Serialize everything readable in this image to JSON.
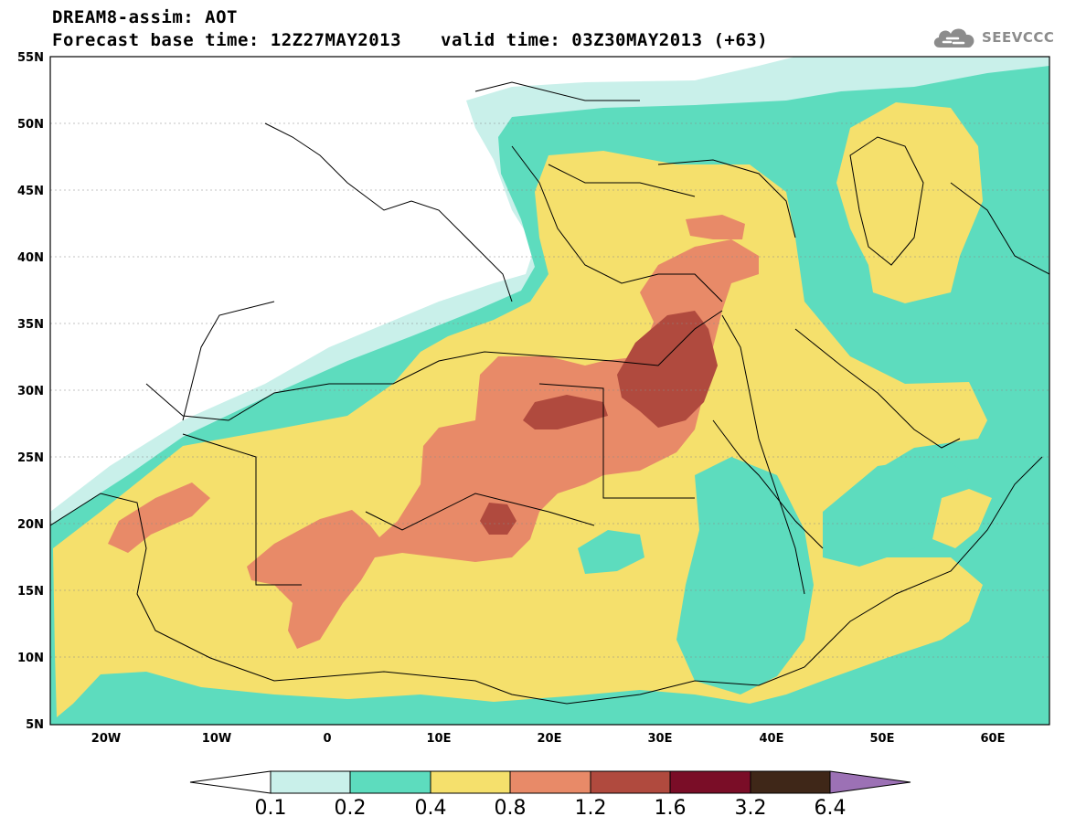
{
  "header": {
    "title": "DREAM8-assim: AOT",
    "forecast_base": "Forecast base time: 12Z27MAY2013",
    "valid_time": "valid time: 03Z30MAY2013 (+63)"
  },
  "logo": {
    "text": "SEEVCCC",
    "icon": "cloud-icon"
  },
  "map": {
    "lat_labels": [
      "55N",
      "50N",
      "45N",
      "40N",
      "35N",
      "30N",
      "25N",
      "20N",
      "15N",
      "10N",
      "5N"
    ],
    "lon_labels": [
      "20W",
      "10W",
      "0",
      "10E",
      "20E",
      "30E",
      "40E",
      "50E",
      "60E"
    ]
  },
  "colorbar": {
    "labels": [
      "0.1",
      "0.2",
      "0.4",
      "0.8",
      "1.2",
      "1.6",
      "3.2",
      "6.4"
    ],
    "colors": [
      "#c9f0ea",
      "#5ddcbe",
      "#f5e06c",
      "#e88a68",
      "#b04a3e",
      "#7a0d27",
      "#3f2718",
      "#9c71b5"
    ]
  }
}
